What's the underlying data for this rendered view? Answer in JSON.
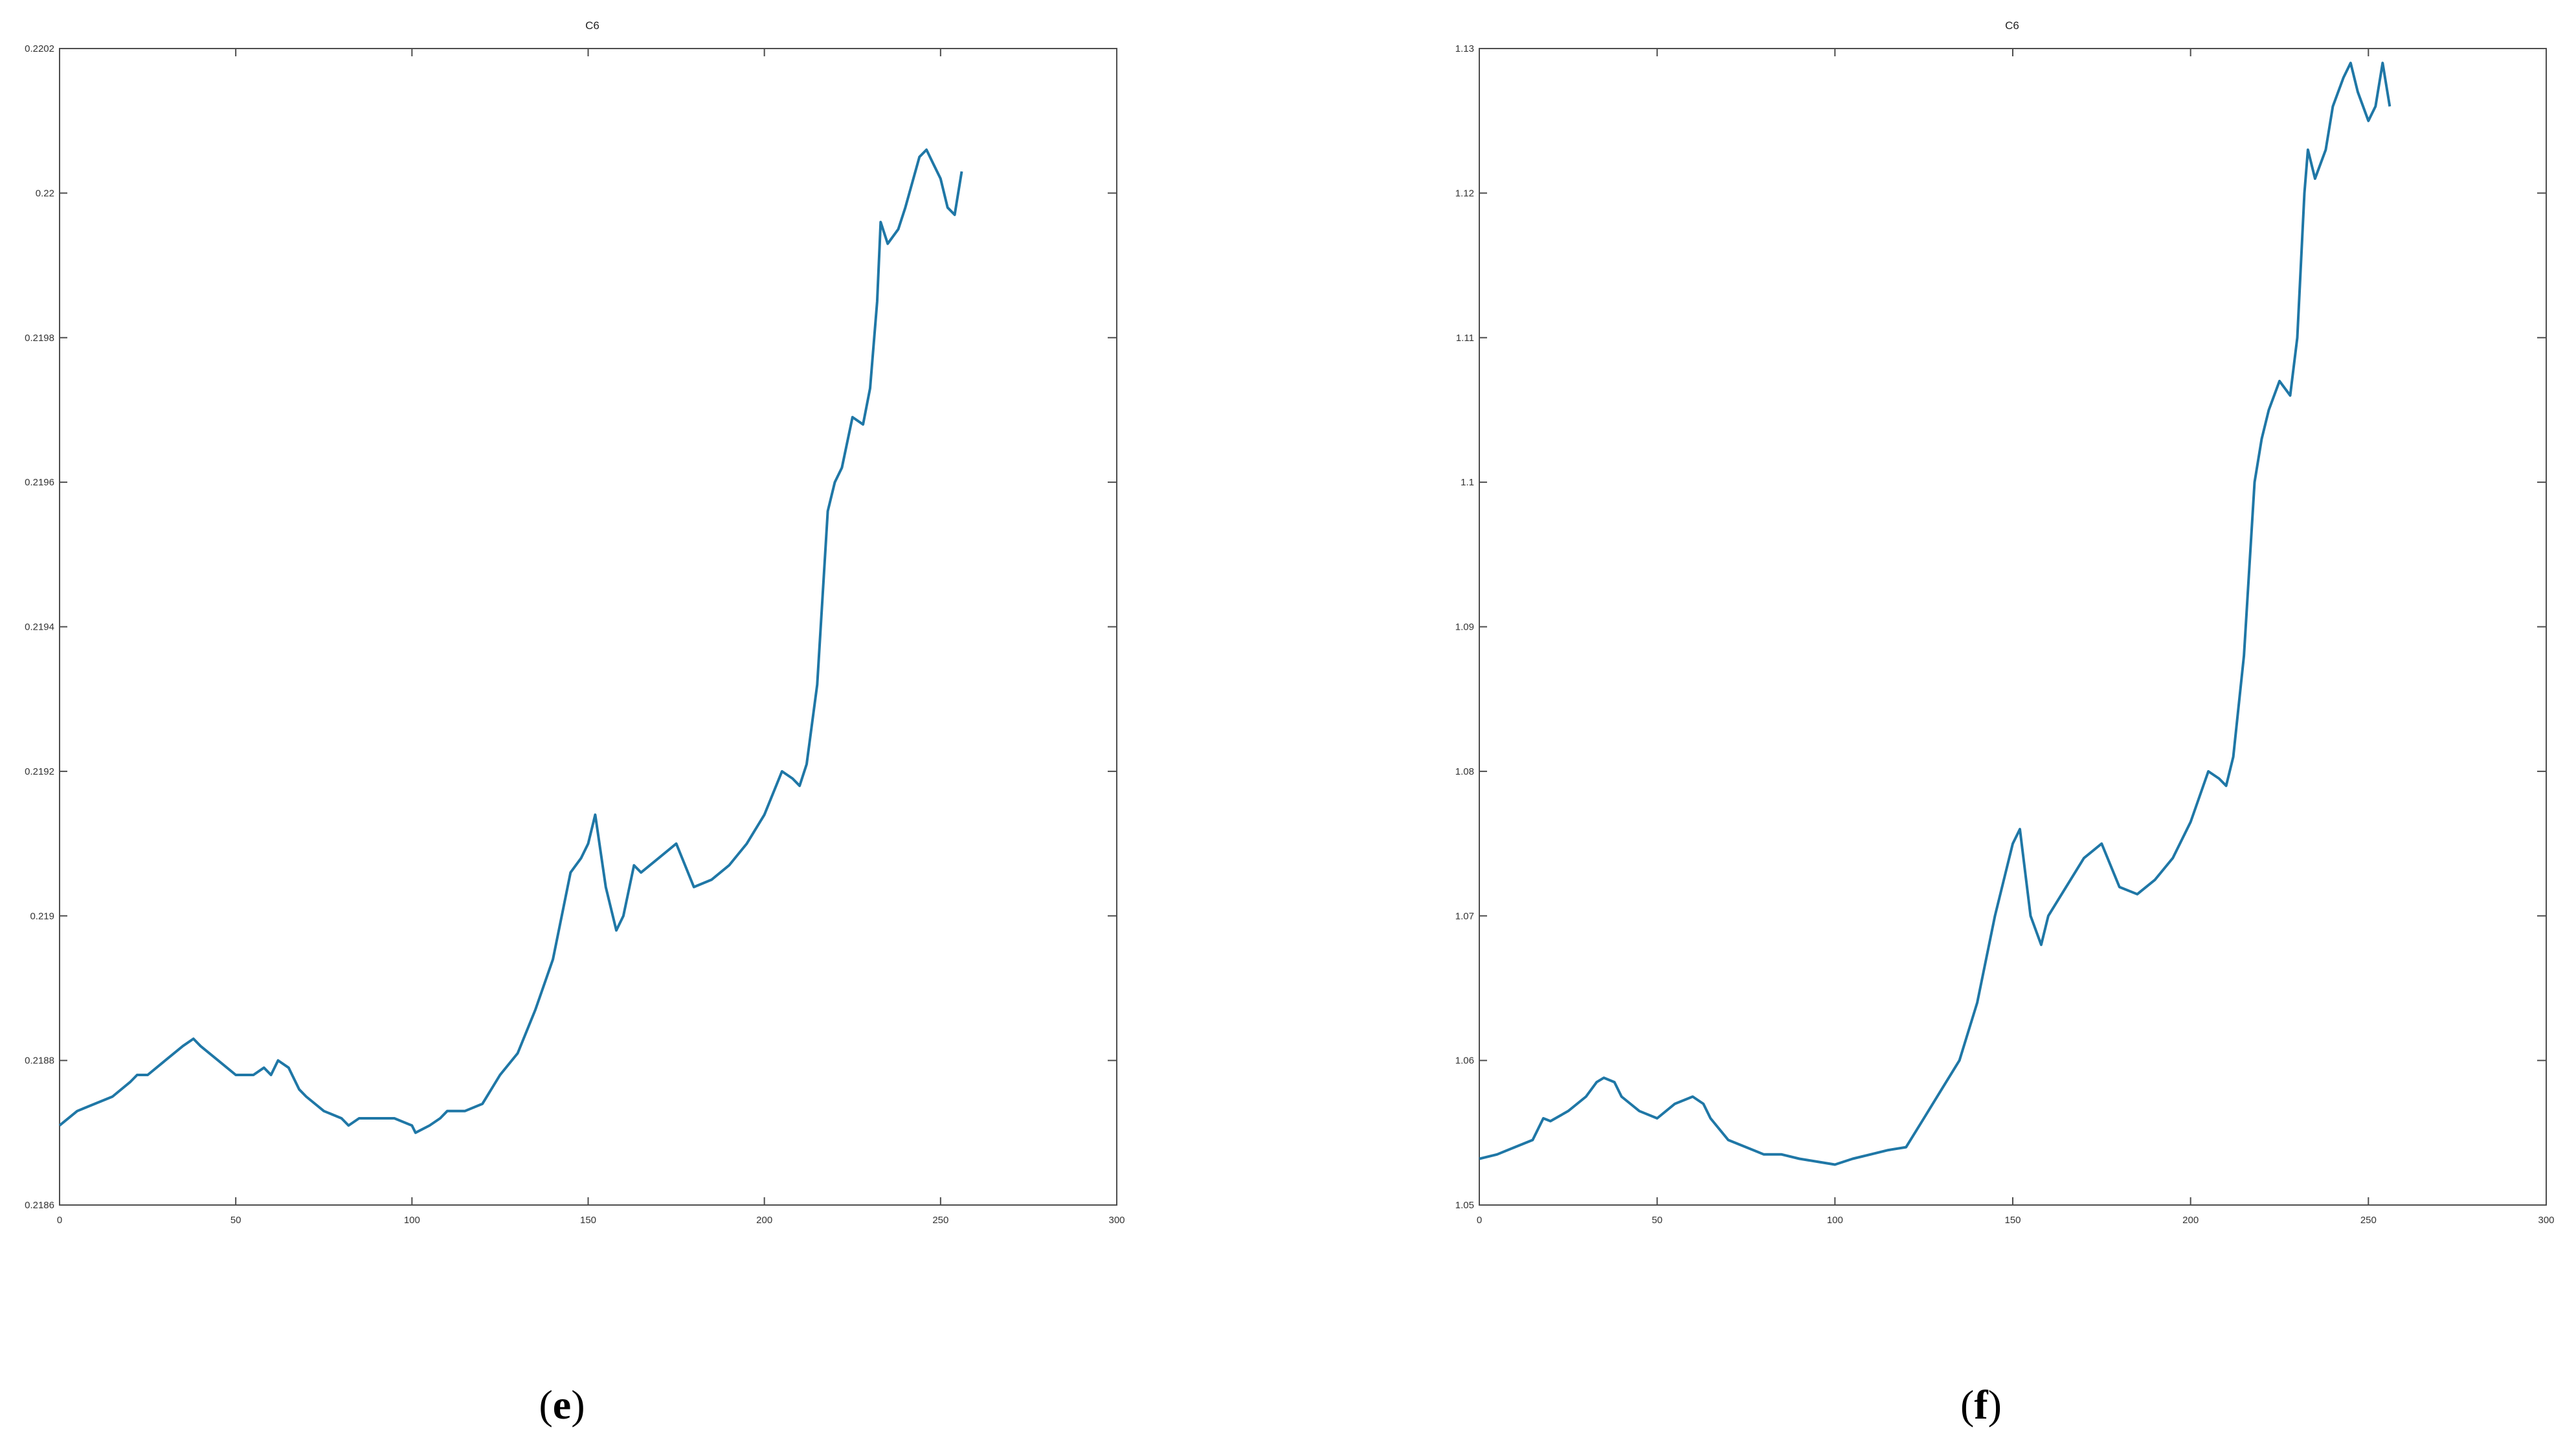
{
  "chart_data": [
    {
      "panel_label": "e",
      "type": "line",
      "title": "C6",
      "xlabel": "",
      "ylabel": "",
      "xlim": [
        0,
        300
      ],
      "ylim": [
        0.2186,
        0.2202
      ],
      "x_ticks": [
        0,
        50,
        100,
        150,
        200,
        250,
        300
      ],
      "x_tick_labels": [
        "0",
        "50",
        "100",
        "150",
        "200",
        "250",
        "300"
      ],
      "y_ticks": [
        0.2186,
        0.2188,
        0.219,
        0.2192,
        0.2194,
        0.2196,
        0.2198,
        0.22,
        0.2202
      ],
      "y_tick_labels": [
        "0.2186",
        "0.2188",
        "0.219",
        "0.2192",
        "0.2194",
        "0.2196",
        "0.2198",
        "0.22",
        "0.2202"
      ],
      "grid": false,
      "line_color": "#1f77a6",
      "series": [
        {
          "x": [
            0,
            5,
            10,
            15,
            20,
            22,
            25,
            30,
            35,
            38,
            40,
            45,
            50,
            55,
            58,
            60,
            62,
            65,
            68,
            70,
            75,
            80,
            82,
            85,
            90,
            95,
            100,
            101,
            105,
            108,
            110,
            115,
            120,
            125,
            130,
            135,
            140,
            145,
            148,
            150,
            152,
            155,
            158,
            160,
            163,
            165,
            170,
            175,
            180,
            185,
            190,
            195,
            200,
            205,
            208,
            210,
            212,
            215,
            218,
            220,
            222,
            225,
            228,
            230,
            232,
            233,
            235,
            238,
            240,
            244,
            246,
            248,
            250,
            252,
            254,
            256
          ],
          "values": [
            0.21871,
            0.21873,
            0.21874,
            0.21875,
            0.21877,
            0.21878,
            0.21878,
            0.2188,
            0.21882,
            0.21883,
            0.21882,
            0.2188,
            0.21878,
            0.21878,
            0.21879,
            0.21878,
            0.2188,
            0.21879,
            0.21876,
            0.21875,
            0.21873,
            0.21872,
            0.21871,
            0.21872,
            0.21872,
            0.21872,
            0.21871,
            0.2187,
            0.21871,
            0.21872,
            0.21873,
            0.21873,
            0.21874,
            0.21878,
            0.21881,
            0.21887,
            0.21894,
            0.21906,
            0.21908,
            0.2191,
            0.21914,
            0.21904,
            0.21898,
            0.219,
            0.21907,
            0.21906,
            0.21908,
            0.2191,
            0.21904,
            0.21905,
            0.21907,
            0.2191,
            0.21914,
            0.2192,
            0.21919,
            0.21918,
            0.21921,
            0.21932,
            0.21956,
            0.2196,
            0.21962,
            0.21969,
            0.21968,
            0.21973,
            0.21985,
            0.21996,
            0.21993,
            0.21995,
            0.21998,
            0.22005,
            0.22006,
            0.22004,
            0.22002,
            0.21998,
            0.21997,
            0.22003
          ]
        }
      ]
    },
    {
      "panel_label": "f",
      "type": "line",
      "title": "C6",
      "xlabel": "",
      "ylabel": "",
      "xlim": [
        0,
        300
      ],
      "ylim": [
        1.05,
        1.13
      ],
      "x_ticks": [
        0,
        50,
        100,
        150,
        200,
        250,
        300
      ],
      "x_tick_labels": [
        "0",
        "50",
        "100",
        "150",
        "200",
        "250",
        "300"
      ],
      "y_ticks": [
        1.05,
        1.06,
        1.07,
        1.08,
        1.09,
        1.1,
        1.11,
        1.12,
        1.13
      ],
      "y_tick_labels": [
        "1.05",
        "1.06",
        "1.07",
        "1.08",
        "1.09",
        "1.1",
        "1.11",
        "1.12",
        "1.13"
      ],
      "grid": false,
      "line_color": "#1f77a6",
      "series": [
        {
          "x": [
            0,
            5,
            10,
            15,
            18,
            20,
            25,
            30,
            33,
            35,
            38,
            40,
            45,
            50,
            55,
            60,
            63,
            65,
            70,
            75,
            80,
            85,
            90,
            95,
            100,
            105,
            110,
            115,
            120,
            125,
            130,
            135,
            140,
            145,
            148,
            150,
            152,
            155,
            158,
            160,
            165,
            170,
            175,
            180,
            185,
            190,
            195,
            200,
            205,
            208,
            210,
            212,
            215,
            218,
            220,
            222,
            225,
            228,
            230,
            232,
            233,
            235,
            238,
            240,
            243,
            245,
            247,
            250,
            252,
            254,
            256
          ],
          "values": [
            1.0532,
            1.0535,
            1.054,
            1.0545,
            1.056,
            1.0558,
            1.0565,
            1.0575,
            1.0585,
            1.0588,
            1.0585,
            1.0575,
            1.0565,
            1.056,
            1.057,
            1.0575,
            1.057,
            1.056,
            1.0545,
            1.054,
            1.0535,
            1.0535,
            1.0532,
            1.053,
            1.0528,
            1.0532,
            1.0535,
            1.0538,
            1.054,
            1.056,
            1.058,
            1.06,
            1.064,
            1.07,
            1.073,
            1.075,
            1.076,
            1.07,
            1.068,
            1.07,
            1.072,
            1.074,
            1.075,
            1.072,
            1.0715,
            1.0725,
            1.074,
            1.0765,
            1.08,
            1.0795,
            1.079,
            1.081,
            1.088,
            1.1,
            1.103,
            1.105,
            1.107,
            1.106,
            1.11,
            1.12,
            1.123,
            1.121,
            1.123,
            1.126,
            1.128,
            1.129,
            1.127,
            1.125,
            1.126,
            1.129,
            1.126
          ]
        }
      ]
    }
  ]
}
